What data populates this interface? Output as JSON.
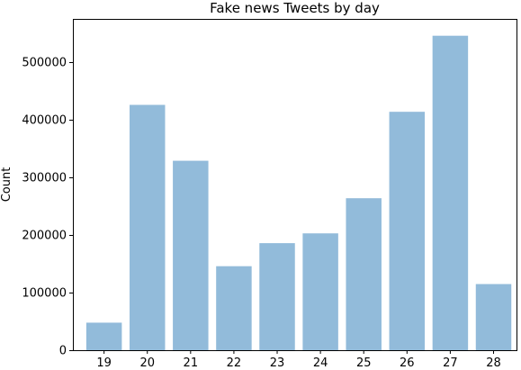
{
  "chart_data": {
    "type": "bar",
    "title": "Fake news Tweets by day",
    "xlabel": "",
    "ylabel": "Count",
    "categories": [
      "19",
      "20",
      "21",
      "22",
      "23",
      "24",
      "25",
      "26",
      "27",
      "28"
    ],
    "values": [
      47000,
      425000,
      328000,
      145000,
      185000,
      202000,
      263000,
      413000,
      545000,
      114000
    ],
    "ylim": [
      0,
      575000
    ],
    "yticks": [
      0,
      100000,
      200000,
      300000,
      400000,
      500000
    ],
    "ytick_labels": [
      "0",
      "100000",
      "200000",
      "300000",
      "400000",
      "500000"
    ],
    "grid": false,
    "legend": "none",
    "bar_color": "#92bbda"
  }
}
